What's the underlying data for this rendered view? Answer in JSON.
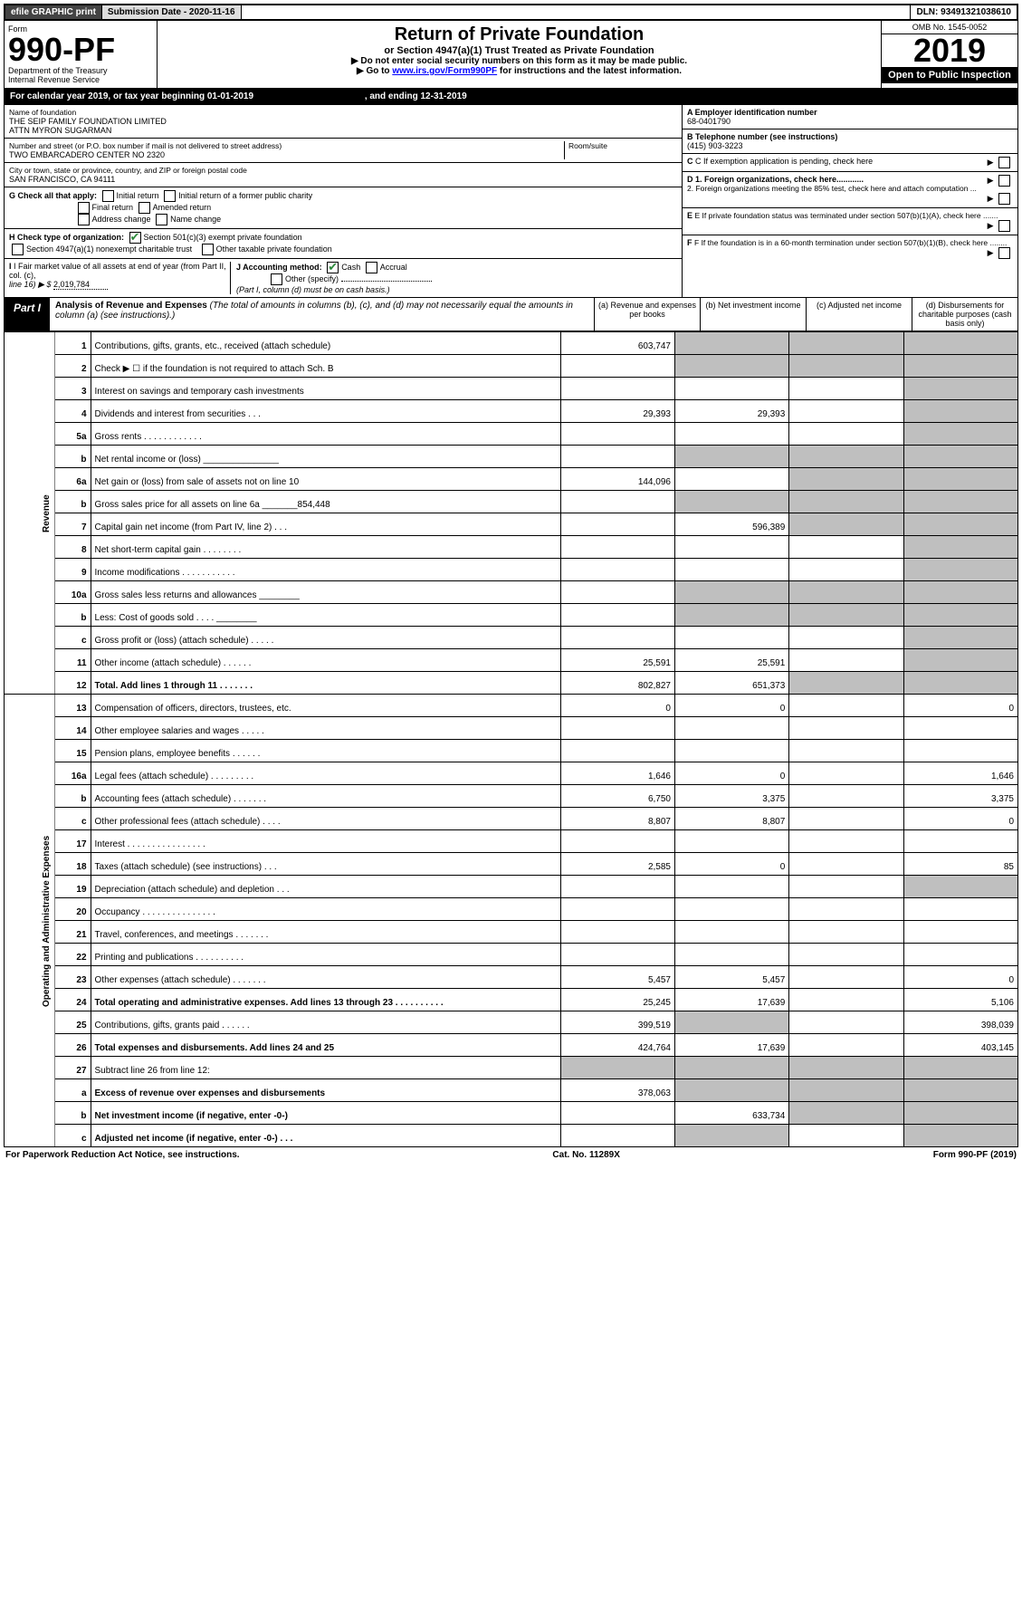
{
  "topbar": {
    "efile": "efile GRAPHIC print",
    "submission_label": "Submission Date - 2020-11-16",
    "dln": "DLN: 93491321038610"
  },
  "header": {
    "form_label": "Form",
    "form_number": "990-PF",
    "dept": "Department of the Treasury",
    "irs": "Internal Revenue Service",
    "title": "Return of Private Foundation",
    "subtitle": "or Section 4947(a)(1) Trust Treated as Private Foundation",
    "notice1": "▶ Do not enter social security numbers on this form as it may be made public.",
    "notice2_pre": "▶ Go to ",
    "notice2_link": "www.irs.gov/Form990PF",
    "notice2_post": " for instructions and the latest information.",
    "omb": "OMB No. 1545-0052",
    "year": "2019",
    "open": "Open to Public Inspection"
  },
  "calendar": {
    "text_pre": "For calendar year 2019, or tax year beginning ",
    "begin": "01-01-2019",
    "text_mid": " , and ending ",
    "end": "12-31-2019"
  },
  "entity": {
    "name_label": "Name of foundation",
    "name1": "THE SEIP FAMILY FOUNDATION LIMITED",
    "name2": "ATTN MYRON SUGARMAN",
    "addr_label": "Number and street (or P.O. box number if mail is not delivered to street address)",
    "addr": "TWO EMBARCADERO CENTER NO 2320",
    "room_label": "Room/suite",
    "city_label": "City or town, state or province, country, and ZIP or foreign postal code",
    "city": "SAN FRANCISCO, CA  94111",
    "ein_label": "A Employer identification number",
    "ein": "68-0401790",
    "phone_label": "B Telephone number (see instructions)",
    "phone": "(415) 903-3223",
    "c_label": "C If exemption application is pending, check here",
    "g_label": "G Check all that apply:",
    "g_opts": [
      "Initial return",
      "Initial return of a former public charity",
      "Final return",
      "Amended return",
      "Address change",
      "Name change"
    ],
    "d1": "D 1. Foreign organizations, check here............",
    "d2": "2. Foreign organizations meeting the 85% test, check here and attach computation ...",
    "h_label": "H Check type of organization:",
    "h_opt1": "Section 501(c)(3) exempt private foundation",
    "h_opt2": "Section 4947(a)(1) nonexempt charitable trust",
    "h_opt3": "Other taxable private foundation",
    "e_label": "E If private foundation status was terminated under section 507(b)(1)(A), check here .......",
    "i_label": "I Fair market value of all assets at end of year (from Part II, col. (c),",
    "i_line": "line 16) ▶ $",
    "i_val": "2,019,784",
    "j_label": "J Accounting method:",
    "j_cash": "Cash",
    "j_accrual": "Accrual",
    "j_other": "Other (specify)",
    "j_note": "(Part I, column (d) must be on cash basis.)",
    "f_label": "F If the foundation is in a 60-month termination under section 507(b)(1)(B), check here ........"
  },
  "part1": {
    "label": "Part I",
    "title": "Analysis of Revenue and Expenses",
    "title_note": " (The total of amounts in columns (b), (c), and (d) may not necessarily equal the amounts in column (a) (see instructions).)",
    "col_a": "(a) Revenue and expenses per books",
    "col_b": "(b) Net investment income",
    "col_c": "(c) Adjusted net income",
    "col_d": "(d) Disbursements for charitable purposes (cash basis only)"
  },
  "sections": {
    "revenue": "Revenue",
    "expenses": "Operating and Administrative Expenses"
  },
  "lines": {
    "l1": {
      "n": "1",
      "d": "Contributions, gifts, grants, etc., received (attach schedule)",
      "a": "603,747"
    },
    "l2": {
      "n": "2",
      "d": "Check ▶ ☐ if the foundation is not required to attach Sch. B"
    },
    "l3": {
      "n": "3",
      "d": "Interest on savings and temporary cash investments"
    },
    "l4": {
      "n": "4",
      "d": "Dividends and interest from securities   .  .  .",
      "a": "29,393",
      "b": "29,393"
    },
    "l5a": {
      "n": "5a",
      "d": "Gross rents      .  .  .  .  .  .  .  .  .  .  .  ."
    },
    "l5b": {
      "n": "b",
      "d": "Net rental income or (loss)  _______________"
    },
    "l6a": {
      "n": "6a",
      "d": "Net gain or (loss) from sale of assets not on line 10",
      "a": "144,096"
    },
    "l6b": {
      "n": "b",
      "d": "Gross sales price for all assets on line 6a _______854,448"
    },
    "l7": {
      "n": "7",
      "d": "Capital gain net income (from Part IV, line 2)   .  .  .",
      "b": "596,389"
    },
    "l8": {
      "n": "8",
      "d": "Net short-term capital gain   .  .  .  .  .  .  .  ."
    },
    "l9": {
      "n": "9",
      "d": "Income modifications  .  .  .  .  .  .  .  .  .  .  ."
    },
    "l10a": {
      "n": "10a",
      "d": "Gross sales less returns and allowances  ________"
    },
    "l10b": {
      "n": "b",
      "d": "Less: Cost of goods sold     .  .  .  .  ________"
    },
    "l10c": {
      "n": "c",
      "d": "Gross profit or (loss) (attach schedule)   .  .  .  .  ."
    },
    "l11": {
      "n": "11",
      "d": "Other income (attach schedule)    .  .  .  .  .  .",
      "a": "25,591",
      "b": "25,591"
    },
    "l12": {
      "n": "12",
      "d": "Total. Add lines 1 through 11    .  .  .  .  .  .  .",
      "a": "802,827",
      "b": "651,373",
      "bold": true
    },
    "l13": {
      "n": "13",
      "d": "Compensation of officers, directors, trustees, etc.",
      "a": "0",
      "b": "0",
      "dd": "0"
    },
    "l14": {
      "n": "14",
      "d": "Other employee salaries and wages    .  .  .  .  ."
    },
    "l15": {
      "n": "15",
      "d": "Pension plans, employee benefits   .  .  .  .  .  ."
    },
    "l16a": {
      "n": "16a",
      "d": "Legal fees (attach schedule)  .  .  .  .  .  .  .  .  .",
      "a": "1,646",
      "b": "0",
      "dd": "1,646"
    },
    "l16b": {
      "n": "b",
      "d": "Accounting fees (attach schedule)  .  .  .  .  .  .  .",
      "a": "6,750",
      "b": "3,375",
      "dd": "3,375"
    },
    "l16c": {
      "n": "c",
      "d": "Other professional fees (attach schedule)    .  .  .  .",
      "a": "8,807",
      "b": "8,807",
      "dd": "0"
    },
    "l17": {
      "n": "17",
      "d": "Interest   .  .  .  .  .  .  .  .  .  .  .  .  .  .  .  ."
    },
    "l18": {
      "n": "18",
      "d": "Taxes (attach schedule) (see instructions)    .  .  .",
      "a": "2,585",
      "b": "0",
      "dd": "85"
    },
    "l19": {
      "n": "19",
      "d": "Depreciation (attach schedule) and depletion   .  .  ."
    },
    "l20": {
      "n": "20",
      "d": "Occupancy  .  .  .  .  .  .  .  .  .  .  .  .  .  .  ."
    },
    "l21": {
      "n": "21",
      "d": "Travel, conferences, and meetings  .  .  .  .  .  .  ."
    },
    "l22": {
      "n": "22",
      "d": "Printing and publications  .  .  .  .  .  .  .  .  .  ."
    },
    "l23": {
      "n": "23",
      "d": "Other expenses (attach schedule)  .  .  .  .  .  .  .",
      "a": "5,457",
      "b": "5,457",
      "dd": "0"
    },
    "l24": {
      "n": "24",
      "d": "Total operating and administrative expenses. Add lines 13 through 23   .  .  .  .  .  .  .  .  .  .",
      "a": "25,245",
      "b": "17,639",
      "dd": "5,106",
      "bold": true
    },
    "l25": {
      "n": "25",
      "d": "Contributions, gifts, grants paid     .  .  .  .  .  .",
      "a": "399,519",
      "dd": "398,039"
    },
    "l26": {
      "n": "26",
      "d": "Total expenses and disbursements. Add lines 24 and 25",
      "a": "424,764",
      "b": "17,639",
      "dd": "403,145",
      "bold": true
    },
    "l27": {
      "n": "27",
      "d": "Subtract line 26 from line 12:"
    },
    "l27a": {
      "n": "a",
      "d": "Excess of revenue over expenses and disbursements",
      "a": "378,063",
      "bold": true
    },
    "l27b": {
      "n": "b",
      "d": "Net investment income (if negative, enter -0-)",
      "b": "633,734",
      "bold": true
    },
    "l27c": {
      "n": "c",
      "d": "Adjusted net income (if negative, enter -0-)   .  .  .",
      "bold": true
    }
  },
  "footer": {
    "left": "For Paperwork Reduction Act Notice, see instructions.",
    "mid": "Cat. No. 11289X",
    "right": "Form 990-PF (2019)"
  }
}
